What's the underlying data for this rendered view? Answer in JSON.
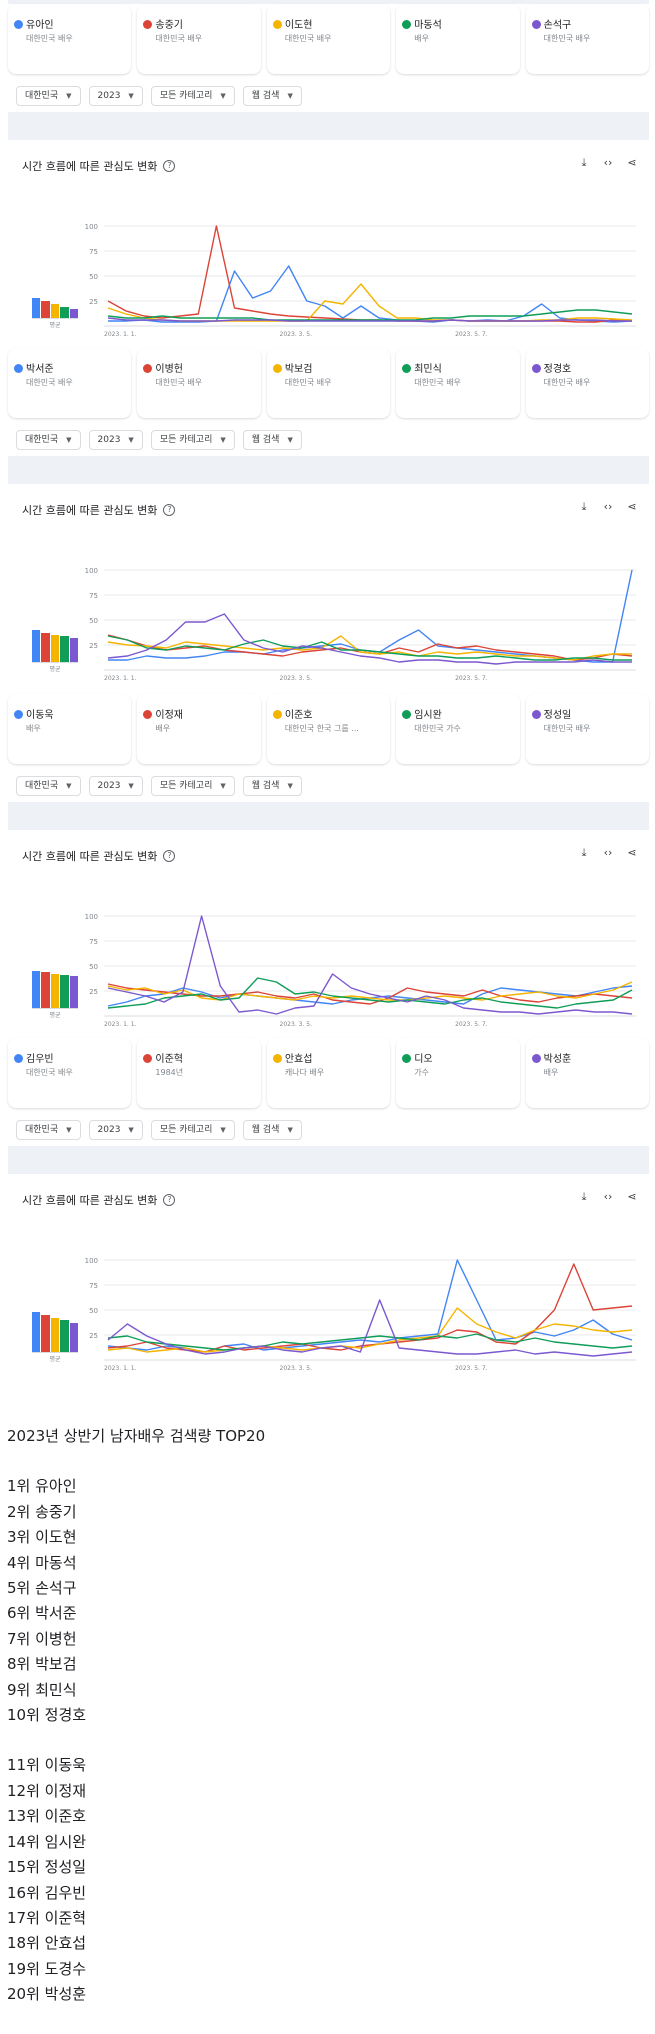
{
  "colors": {
    "blue": "#4285f4",
    "red": "#db4437",
    "yellow": "#f4b400",
    "green": "#0f9d58",
    "purple": "#7b58cf"
  },
  "term_sets": [
    [
      {
        "name": "유아인",
        "sub": "대한민국 배우",
        "color": "#4285f4"
      },
      {
        "name": "송중기",
        "sub": "대한민국 배우",
        "color": "#db4437"
      },
      {
        "name": "이도현",
        "sub": "대한민국 배우",
        "color": "#f4b400"
      },
      {
        "name": "마동석",
        "sub": "배우",
        "color": "#0f9d58"
      },
      {
        "name": "손석구",
        "sub": "대한민국 배우",
        "color": "#7b58cf"
      }
    ],
    [
      {
        "name": "박서준",
        "sub": "대한민국 배우",
        "color": "#4285f4"
      },
      {
        "name": "이병헌",
        "sub": "대한민국 배우",
        "color": "#db4437"
      },
      {
        "name": "박보검",
        "sub": "대한민국 배우",
        "color": "#f4b400"
      },
      {
        "name": "최민식",
        "sub": "대한민국 배우",
        "color": "#0f9d58"
      },
      {
        "name": "정경호",
        "sub": "대한민국 배우",
        "color": "#7b58cf"
      }
    ],
    [
      {
        "name": "이동욱",
        "sub": "배우",
        "color": "#4285f4"
      },
      {
        "name": "이정재",
        "sub": "배우",
        "color": "#db4437"
      },
      {
        "name": "이준호",
        "sub": "대한민국 한국 그룹 ...",
        "color": "#f4b400"
      },
      {
        "name": "임시완",
        "sub": "대한민국 가수",
        "color": "#0f9d58"
      },
      {
        "name": "정성일",
        "sub": "대한민국 배우",
        "color": "#7b58cf"
      }
    ],
    [
      {
        "name": "김우빈",
        "sub": "대한민국 배우",
        "color": "#4285f4"
      },
      {
        "name": "이준혁",
        "sub": "1984년",
        "color": "#db4437"
      },
      {
        "name": "안효섭",
        "sub": "캐나다 배우",
        "color": "#f4b400"
      },
      {
        "name": "디오",
        "sub": "가수",
        "color": "#0f9d58"
      },
      {
        "name": "박성훈",
        "sub": "배우",
        "color": "#7b58cf"
      }
    ]
  ],
  "filters": {
    "region": "대한민국",
    "year": "2023",
    "category": "모든 카테고리",
    "search_type": "웹 검색"
  },
  "chart_title": "시간 흐름에 따른 관심도 변화",
  "avg_label": "평균",
  "chart_data": [
    {
      "type": "line",
      "ylim": [
        0,
        100
      ],
      "yticks": [
        "100",
        "75",
        "50",
        "25"
      ],
      "xticks": [
        "2023. 1. 1.",
        "2023. 3. 5.",
        "2023. 5. 7."
      ],
      "avg": [
        14,
        12,
        10,
        8,
        6
      ],
      "series": [
        {
          "name": "유아인",
          "color": "#4285f4",
          "values": [
            5,
            5,
            6,
            4,
            4,
            4,
            5,
            55,
            28,
            35,
            60,
            25,
            20,
            8,
            20,
            8,
            6,
            5,
            4,
            6,
            5,
            6,
            5,
            10,
            22,
            8,
            6,
            5,
            4,
            5
          ]
        },
        {
          "name": "송중기",
          "color": "#db4437",
          "values": [
            25,
            15,
            10,
            8,
            10,
            12,
            100,
            18,
            15,
            12,
            10,
            9,
            8,
            7,
            6,
            6,
            5,
            5,
            5,
            6,
            5,
            5,
            5,
            5,
            5,
            5,
            4,
            4,
            6,
            5
          ]
        },
        {
          "name": "이도현",
          "color": "#f4b400",
          "values": [
            18,
            12,
            8,
            6,
            5,
            5,
            5,
            5,
            5,
            5,
            5,
            5,
            25,
            22,
            42,
            20,
            8,
            8,
            6,
            6,
            5,
            5,
            5,
            5,
            6,
            6,
            8,
            8,
            7,
            6
          ]
        },
        {
          "name": "마동석",
          "color": "#0f9d58",
          "values": [
            10,
            8,
            8,
            10,
            8,
            8,
            8,
            8,
            8,
            6,
            6,
            6,
            6,
            6,
            6,
            6,
            6,
            6,
            8,
            8,
            10,
            10,
            10,
            10,
            12,
            14,
            16,
            16,
            14,
            12
          ]
        },
        {
          "name": "손석구",
          "color": "#7b58cf",
          "values": [
            8,
            6,
            6,
            6,
            5,
            5,
            5,
            6,
            6,
            6,
            5,
            5,
            5,
            5,
            5,
            5,
            5,
            5,
            5,
            6,
            5,
            5,
            5,
            5,
            5,
            6,
            6,
            6,
            5,
            5
          ]
        }
      ]
    },
    {
      "type": "line",
      "ylim": [
        0,
        100
      ],
      "yticks": [
        "100",
        "75",
        "50",
        "25"
      ],
      "xticks": [
        "2023. 1. 1.",
        "2023. 3. 5.",
        "2023. 5. 7."
      ],
      "avg": [
        22,
        20,
        19,
        18,
        17
      ],
      "series": [
        {
          "name": "박서준",
          "color": "#4285f4",
          "values": [
            10,
            10,
            14,
            12,
            12,
            14,
            18,
            18,
            16,
            20,
            22,
            24,
            26,
            20,
            18,
            30,
            40,
            24,
            22,
            20,
            18,
            16,
            14,
            12,
            10,
            8,
            8,
            100
          ]
        },
        {
          "name": "이병헌",
          "color": "#db4437",
          "values": [
            35,
            30,
            24,
            20,
            22,
            24,
            20,
            18,
            16,
            14,
            18,
            20,
            22,
            18,
            16,
            22,
            18,
            26,
            22,
            24,
            20,
            18,
            16,
            14,
            10,
            12,
            16,
            14
          ]
        },
        {
          "name": "박보검",
          "color": "#f4b400",
          "values": [
            28,
            25,
            24,
            22,
            28,
            26,
            24,
            22,
            20,
            22,
            20,
            22,
            34,
            18,
            16,
            18,
            14,
            18,
            16,
            18,
            16,
            14,
            14,
            12,
            10,
            14,
            16,
            16
          ]
        },
        {
          "name": "최민식",
          "color": "#0f9d58",
          "values": [
            34,
            30,
            22,
            20,
            24,
            22,
            20,
            26,
            30,
            24,
            22,
            28,
            20,
            20,
            18,
            16,
            14,
            14,
            12,
            12,
            14,
            12,
            10,
            10,
            12,
            12,
            10,
            10
          ]
        },
        {
          "name": "정경호",
          "color": "#7b58cf",
          "values": [
            12,
            14,
            20,
            30,
            48,
            48,
            56,
            30,
            22,
            18,
            24,
            22,
            18,
            14,
            12,
            8,
            10,
            10,
            8,
            8,
            6,
            8,
            8,
            8,
            8,
            10,
            8,
            8
          ]
        }
      ]
    },
    {
      "type": "line",
      "ylim": [
        0,
        100
      ],
      "yticks": [
        "100",
        "75",
        "50",
        "25"
      ],
      "xticks": [
        "2023. 1. 1.",
        "2023. 3. 5.",
        "2023. 5. 7."
      ],
      "avg": [
        26,
        25,
        24,
        23,
        22
      ],
      "series": [
        {
          "name": "이동욱",
          "color": "#4285f4",
          "values": [
            10,
            14,
            20,
            22,
            28,
            24,
            18,
            22,
            20,
            18,
            16,
            14,
            12,
            16,
            18,
            20,
            18,
            16,
            14,
            12,
            22,
            28,
            26,
            24,
            22,
            20,
            24,
            28,
            30
          ]
        },
        {
          "name": "이정재",
          "color": "#db4437",
          "values": [
            32,
            28,
            26,
            24,
            22,
            20,
            20,
            22,
            24,
            20,
            18,
            22,
            16,
            14,
            12,
            18,
            28,
            24,
            22,
            20,
            26,
            20,
            16,
            14,
            18,
            20,
            22,
            20,
            18
          ]
        },
        {
          "name": "이준호",
          "color": "#f4b400",
          "values": [
            30,
            26,
            28,
            22,
            26,
            18,
            16,
            22,
            20,
            18,
            16,
            20,
            18,
            20,
            18,
            16,
            16,
            18,
            20,
            18,
            16,
            20,
            22,
            24,
            20,
            18,
            22,
            26,
            34
          ]
        },
        {
          "name": "임시완",
          "color": "#0f9d58",
          "values": [
            8,
            10,
            12,
            18,
            20,
            22,
            16,
            18,
            38,
            34,
            22,
            24,
            20,
            18,
            16,
            14,
            16,
            14,
            12,
            16,
            18,
            14,
            12,
            10,
            8,
            12,
            14,
            16,
            26
          ]
        },
        {
          "name": "정성일",
          "color": "#7b58cf",
          "values": [
            28,
            24,
            20,
            14,
            24,
            100,
            30,
            4,
            6,
            2,
            8,
            10,
            42,
            28,
            22,
            18,
            14,
            20,
            16,
            8,
            6,
            4,
            4,
            2,
            4,
            6,
            4,
            4,
            2
          ]
        }
      ]
    },
    {
      "type": "line",
      "ylim": [
        0,
        100
      ],
      "yticks": [
        "100",
        "75",
        "50",
        "25"
      ],
      "xticks": [
        "2023. 1. 1.",
        "2023. 3. 5.",
        "2023. 5. 7."
      ],
      "avg": [
        28,
        26,
        24,
        22,
        20
      ],
      "series": [
        {
          "name": "김우빈",
          "color": "#4285f4",
          "values": [
            14,
            12,
            10,
            14,
            12,
            8,
            14,
            16,
            10,
            12,
            14,
            16,
            18,
            20,
            18,
            22,
            24,
            26,
            100,
            60,
            20,
            22,
            28,
            24,
            30,
            40,
            26,
            20
          ]
        },
        {
          "name": "이준혁",
          "color": "#db4437",
          "values": [
            12,
            14,
            18,
            12,
            10,
            8,
            14,
            10,
            12,
            14,
            16,
            12,
            10,
            14,
            16,
            18,
            20,
            22,
            30,
            28,
            18,
            16,
            30,
            50,
            96,
            50,
            52,
            54
          ]
        },
        {
          "name": "안효섭",
          "color": "#f4b400",
          "values": [
            10,
            12,
            8,
            10,
            12,
            8,
            10,
            12,
            14,
            12,
            10,
            12,
            14,
            12,
            16,
            20,
            22,
            24,
            52,
            36,
            28,
            22,
            30,
            36,
            34,
            30,
            28,
            30
          ]
        },
        {
          "name": "디오",
          "color": "#0f9d58",
          "values": [
            22,
            24,
            18,
            16,
            14,
            12,
            10,
            12,
            14,
            18,
            16,
            18,
            20,
            22,
            24,
            22,
            20,
            24,
            22,
            26,
            20,
            18,
            22,
            18,
            16,
            14,
            12,
            14
          ]
        },
        {
          "name": "박성훈",
          "color": "#7b58cf",
          "values": [
            20,
            36,
            24,
            16,
            10,
            6,
            8,
            12,
            14,
            10,
            8,
            12,
            14,
            8,
            60,
            12,
            10,
            8,
            6,
            6,
            8,
            10,
            6,
            8,
            6,
            4,
            6,
            8
          ]
        }
      ]
    }
  ],
  "article": {
    "title": "2023년 상반기 남자배우 검색량 TOP20",
    "group1": [
      "1위 유아인",
      "2위 송중기",
      "3위 이도현",
      "4위 마동석",
      "5위 손석구",
      "6위 박서준",
      "7위 이병헌",
      "8위 박보검",
      "9위 최민식",
      "10위 정경호"
    ],
    "group2": [
      "11위 이동욱",
      "12위 이정재",
      "13위 이준호",
      "14위 임시완",
      "15위 정성일",
      "16위 김우빈",
      "17위 이준혁",
      "18위 안효섭",
      "19위 도경수",
      "20위 박성훈"
    ]
  }
}
